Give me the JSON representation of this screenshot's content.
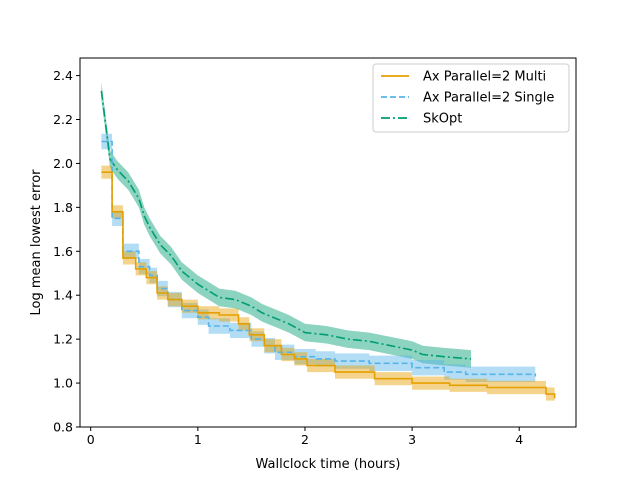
{
  "chart_data": {
    "type": "line",
    "title": "",
    "xlabel": "Wallclock time (hours)",
    "ylabel": "Log mean lowest error",
    "xlim": [
      -0.1,
      4.53
    ],
    "ylim": [
      0.8,
      2.48
    ],
    "xticks": [
      0,
      1,
      2,
      3,
      4
    ],
    "xtick_labels": [
      "0",
      "1",
      "2",
      "3",
      "4"
    ],
    "yticks": [
      0.8,
      1.0,
      1.2,
      1.4,
      1.6,
      1.8,
      2.0,
      2.2,
      2.4
    ],
    "ytick_labels": [
      "0.8",
      "1.0",
      "1.2",
      "1.4",
      "1.6",
      "1.8",
      "2.0",
      "2.2",
      "2.4"
    ],
    "grid": false,
    "legend_position": "top-right",
    "series": [
      {
        "name": "Ax Parallel=2 Multi",
        "color": "#e69f00",
        "style": "solid",
        "step": true,
        "x": [
          0.1,
          0.2,
          0.3,
          0.42,
          0.52,
          0.62,
          0.72,
          0.85,
          1.0,
          1.2,
          1.38,
          1.48,
          1.62,
          1.78,
          1.9,
          2.02,
          2.28,
          2.65,
          3.0,
          3.35,
          3.7,
          4.25,
          4.33
        ],
        "y": [
          1.96,
          1.78,
          1.57,
          1.52,
          1.48,
          1.41,
          1.38,
          1.35,
          1.32,
          1.31,
          1.27,
          1.22,
          1.17,
          1.13,
          1.11,
          1.08,
          1.05,
          1.02,
          1.0,
          0.99,
          0.98,
          0.95,
          0.93
        ],
        "band_half_width": 0.03
      },
      {
        "name": "Ax Parallel=2 Single",
        "color": "#56b4e9",
        "style": "dashed",
        "step": true,
        "x": [
          0.1,
          0.2,
          0.3,
          0.45,
          0.55,
          0.62,
          0.72,
          0.85,
          1.0,
          1.1,
          1.3,
          1.5,
          1.62,
          1.72,
          1.9,
          2.1,
          2.28,
          2.6,
          3.0,
          3.3,
          3.5,
          4.15
        ],
        "y": [
          2.1,
          1.75,
          1.6,
          1.53,
          1.49,
          1.43,
          1.38,
          1.33,
          1.3,
          1.26,
          1.24,
          1.2,
          1.17,
          1.14,
          1.12,
          1.11,
          1.1,
          1.09,
          1.07,
          1.05,
          1.04,
          1.03
        ],
        "band_half_width": 0.035
      },
      {
        "name": "SkOpt",
        "color": "#009e73",
        "style": "dashdot",
        "step": false,
        "x": [
          0.1,
          0.18,
          0.25,
          0.35,
          0.45,
          0.5,
          0.55,
          0.65,
          0.75,
          0.85,
          1.0,
          1.1,
          1.2,
          1.35,
          1.5,
          1.6,
          1.7,
          1.85,
          2.0,
          2.2,
          2.4,
          2.6,
          2.8,
          3.0,
          3.1,
          3.3,
          3.55
        ],
        "y": [
          2.33,
          2.02,
          1.97,
          1.92,
          1.84,
          1.76,
          1.71,
          1.63,
          1.58,
          1.51,
          1.45,
          1.42,
          1.39,
          1.38,
          1.35,
          1.32,
          1.3,
          1.27,
          1.23,
          1.22,
          1.2,
          1.19,
          1.17,
          1.15,
          1.13,
          1.12,
          1.11
        ],
        "band_half_width": 0.04
      }
    ]
  }
}
